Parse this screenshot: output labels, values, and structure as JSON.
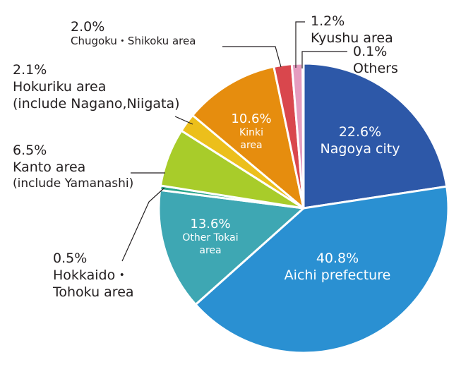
{
  "chart_data": {
    "type": "pie",
    "title": "",
    "slices": [
      {
        "name": "Nagoya city",
        "value": 22.6,
        "percent_label": "22.6%",
        "label_lines": [
          "Nagoya city"
        ],
        "color": "#2d58a8"
      },
      {
        "name": "Aichi prefecture",
        "value": 40.8,
        "percent_label": "40.8%",
        "label_lines": [
          "Aichi prefecture"
        ],
        "color": "#2a90d2"
      },
      {
        "name": "Other Tokai area",
        "value": 13.6,
        "percent_label": "13.6%",
        "label_lines": [
          "Other Tokai",
          "area"
        ],
        "color": "#3ea7b3"
      },
      {
        "name": "Hokkaido・Tohoku area",
        "value": 0.5,
        "percent_label": "0.5%",
        "label_lines": [
          "Hokkaido・",
          "Tohoku area"
        ],
        "color": "#2aa58a"
      },
      {
        "name": "Kanto area (include Yamanashi)",
        "value": 6.5,
        "percent_label": "6.5%",
        "label_lines": [
          "Kanto area",
          "(include Yamanashi)"
        ],
        "color": "#a8cc2a"
      },
      {
        "name": "Hokuriku area (include Nagano,Niigata)",
        "value": 2.1,
        "percent_label": "2.1%",
        "label_lines": [
          "Hokuriku area",
          "(include Nagano,Niigata)"
        ],
        "color": "#ecbf1b"
      },
      {
        "name": "Kinki area",
        "value": 10.6,
        "percent_label": "10.6%",
        "label_lines": [
          "Kinki",
          "area"
        ],
        "color": "#e68d0e"
      },
      {
        "name": "Chugoku・Shikoku area",
        "value": 2.0,
        "percent_label": "2.0%",
        "label_lines": [
          "Chugoku・Shikoku area"
        ],
        "color": "#d9474d"
      },
      {
        "name": "Kyushu area",
        "value": 1.2,
        "percent_label": "1.2%",
        "label_lines": [
          "Kyushu area"
        ],
        "color": "#e59cbf"
      },
      {
        "name": "Others",
        "value": 0.1,
        "percent_label": "0.1%",
        "label_lines": [
          "Others"
        ],
        "color": "#e8e8e8"
      }
    ]
  }
}
